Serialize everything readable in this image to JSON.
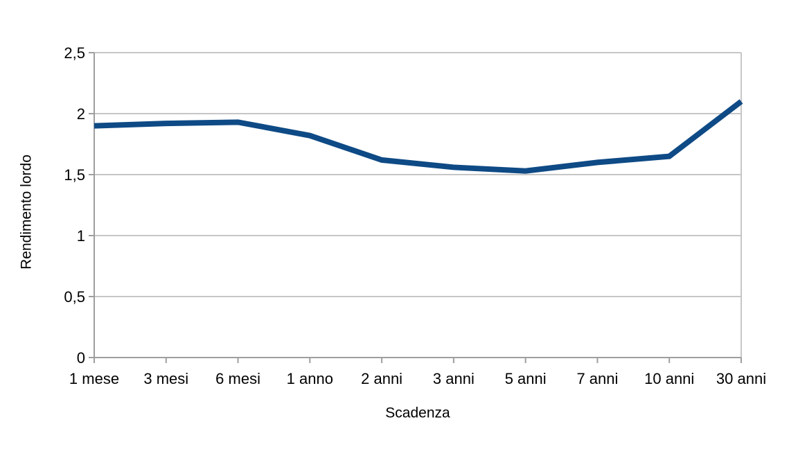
{
  "chart_data": {
    "type": "line",
    "title": "",
    "xlabel": "Scadenza",
    "ylabel": "Rendimento lordo",
    "categories": [
      "1 mese",
      "3 mesi",
      "6 mesi",
      "1 anno",
      "2 anni",
      "3 anni",
      "5 anni",
      "7 anni",
      "10 anni",
      "30 anni"
    ],
    "values": [
      1.9,
      1.92,
      1.93,
      1.82,
      1.62,
      1.56,
      1.53,
      1.6,
      1.65,
      2.1
    ],
    "series": [
      {
        "name": "Rendimento lordo",
        "values": [
          1.9,
          1.92,
          1.93,
          1.82,
          1.62,
          1.56,
          1.53,
          1.6,
          1.65,
          2.1
        ]
      }
    ],
    "y_ticks": [
      {
        "label": "0",
        "value": 0
      },
      {
        "label": "0,5",
        "value": 0.5
      },
      {
        "label": "1",
        "value": 1
      },
      {
        "label": "1,5",
        "value": 1.5
      },
      {
        "label": "2",
        "value": 2
      },
      {
        "label": "2,5",
        "value": 2.5
      }
    ],
    "ylim": [
      0,
      2.5
    ],
    "grid": "horizontal",
    "legend": "none",
    "decimal_separator": ",",
    "colors": {
      "line": "#0e4a85",
      "gridline": "#c6c6c6",
      "axis": "#9e9e9e",
      "text": "#000000",
      "background": "#ffffff"
    },
    "line_width": 8
  }
}
